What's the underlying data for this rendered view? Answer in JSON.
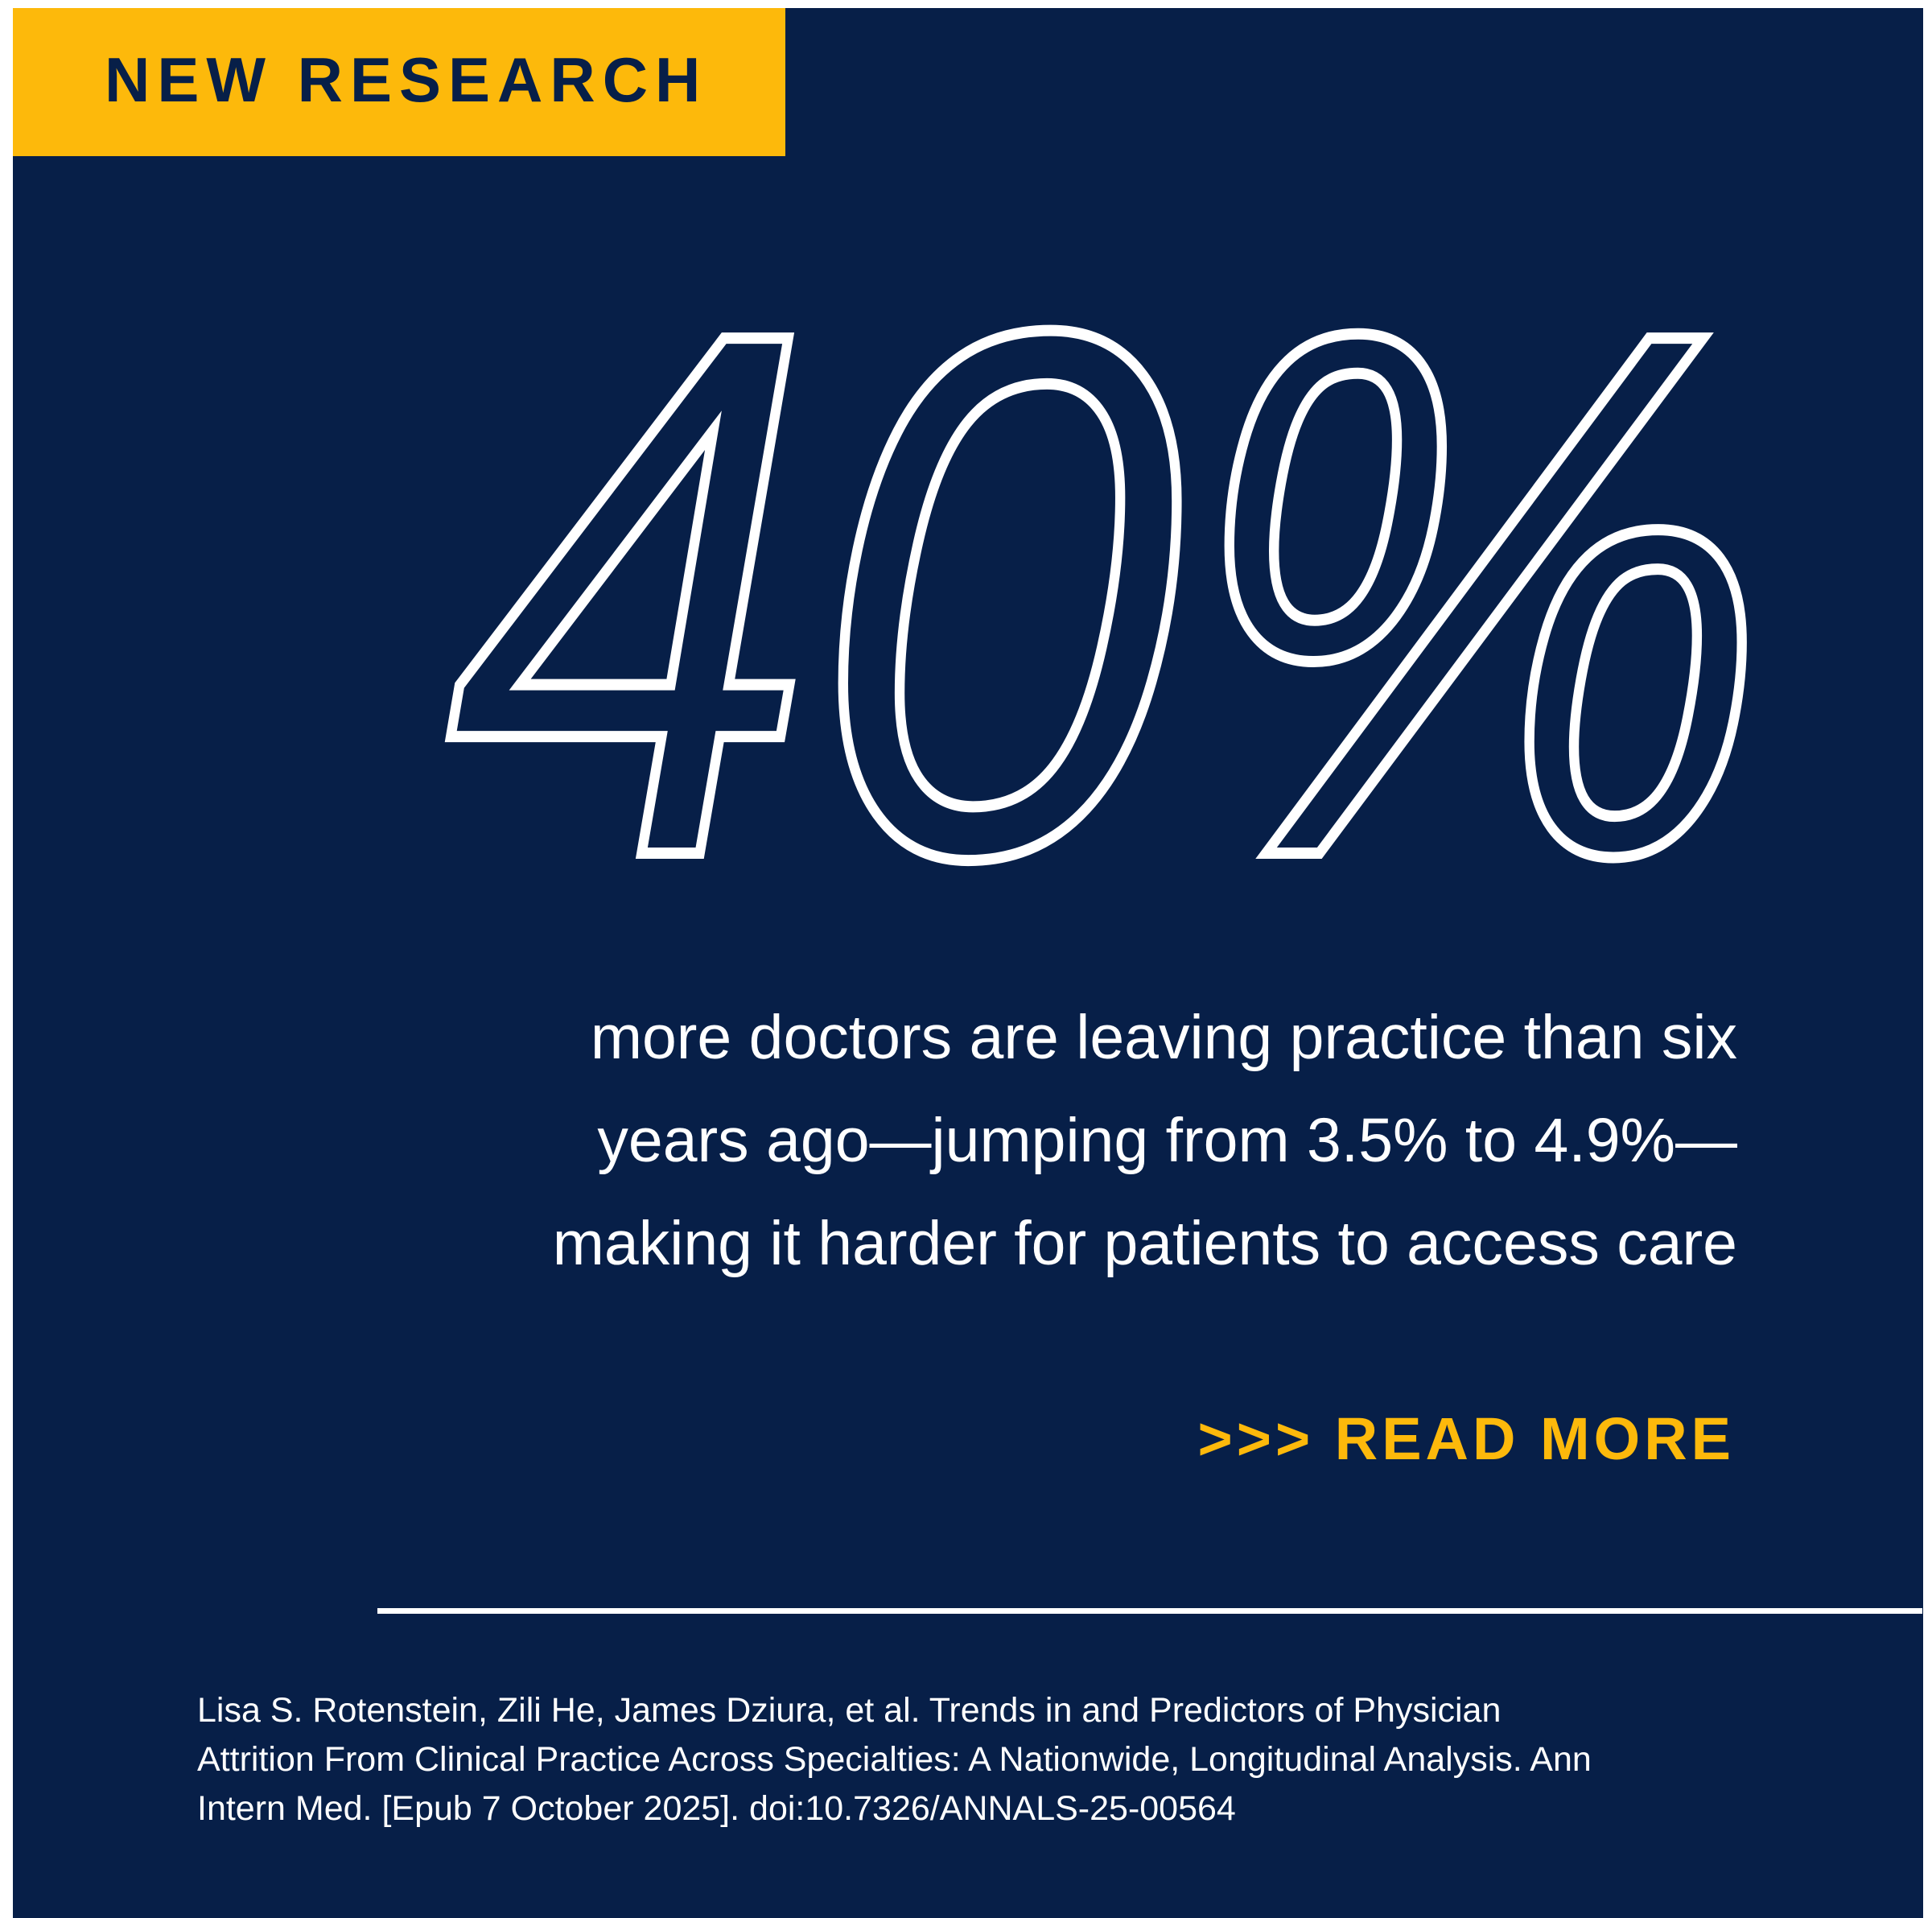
{
  "colors": {
    "background": "#071f48",
    "accent": "#fdb90b",
    "text": "#ffffff"
  },
  "badge": {
    "label": "NEW RESEARCH"
  },
  "headline": {
    "stat": "40%"
  },
  "body": {
    "lines": [
      "more doctors are leaving practice than six",
      "years ago—jumping from 3.5% to 4.9%—",
      "making it harder for patients to access care"
    ]
  },
  "cta": {
    "label": ">>> READ MORE"
  },
  "citation": {
    "lines": [
      "Lisa S. Rotenstein, Zili He, James Dziura, et al. Trends in and Predictors of Physician",
      "Attrition From Clinical Practice Across Specialties: A Nationwide, Longitudinal Analysis. Ann",
      "Intern Med. [Epub 7 October 2025]. doi:10.7326/ANNALS-25-00564"
    ]
  }
}
